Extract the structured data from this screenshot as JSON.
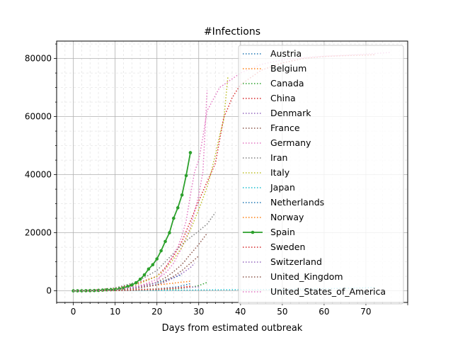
{
  "chart_data": {
    "type": "line",
    "title": "#Infections",
    "xlabel": "Days from estimated outbreak",
    "ylabel": "",
    "xlim": [
      -4,
      80
    ],
    "ylim": [
      -4000,
      86000
    ],
    "xticks": [
      0,
      10,
      20,
      30,
      40,
      50,
      60,
      70
    ],
    "yticks": [
      0,
      20000,
      40000,
      60000,
      80000
    ],
    "grid": "major and minor",
    "legend": "top-right",
    "series": [
      {
        "name": "Austria",
        "color": "#1f77b4",
        "style": "dotted",
        "x": [
          0,
          5,
          10,
          15,
          20,
          22,
          24,
          26
        ],
        "y": [
          0,
          200,
          600,
          1300,
          2800,
          3600,
          4500,
          5600
        ]
      },
      {
        "name": "Belgium",
        "color": "#ff7f0e",
        "style": "dotted",
        "x": [
          0,
          5,
          10,
          15,
          20,
          23,
          26,
          28
        ],
        "y": [
          0,
          150,
          500,
          1100,
          2000,
          2500,
          3000,
          3300
        ]
      },
      {
        "name": "Canada",
        "color": "#2ca02c",
        "style": "dotted",
        "x": [
          0,
          10,
          20,
          25,
          28,
          30,
          32
        ],
        "y": [
          0,
          80,
          300,
          700,
          1200,
          1800,
          2900
        ]
      },
      {
        "name": "China",
        "color": "#d62728",
        "style": "dotted",
        "x": [
          0,
          5,
          10,
          15,
          20,
          22,
          24,
          26,
          28,
          30,
          32,
          34,
          35,
          36,
          37,
          38,
          40,
          45,
          50,
          55,
          60,
          65,
          70,
          72
        ],
        "y": [
          0,
          300,
          1000,
          2500,
          5000,
          8000,
          12000,
          17000,
          24000,
          31000,
          37500,
          44000,
          52000,
          59800,
          63000,
          66500,
          71000,
          76000,
          78500,
          80000,
          80700,
          81000,
          81200,
          81300
        ]
      },
      {
        "name": "Denmark",
        "color": "#9467bd",
        "style": "dotted",
        "x": [
          0,
          10,
          20,
          25,
          30
        ],
        "y": [
          0,
          100,
          500,
          900,
          1400
        ]
      },
      {
        "name": "France",
        "color": "#8c564b",
        "style": "dotted",
        "x": [
          0,
          5,
          10,
          15,
          20,
          22,
          24,
          26,
          28,
          30,
          32
        ],
        "y": [
          0,
          150,
          500,
          1200,
          3000,
          4500,
          6600,
          9100,
          12600,
          16000,
          19800
        ]
      },
      {
        "name": "Germany",
        "color": "#e377c2",
        "style": "dotted",
        "x": [
          0,
          5,
          10,
          15,
          20,
          22,
          24,
          26,
          28,
          30,
          31,
          32
        ],
        "y": [
          0,
          150,
          500,
          1200,
          4000,
          6000,
          9500,
          15000,
          22000,
          33000,
          41000,
          69000
        ]
      },
      {
        "name": "Iran",
        "color": "#7f7f7f",
        "style": "dotted",
        "x": [
          0,
          5,
          10,
          15,
          20,
          22,
          24,
          26,
          28,
          30,
          32,
          34
        ],
        "y": [
          0,
          200,
          1000,
          3000,
          7000,
          10000,
          13000,
          16000,
          18400,
          20600,
          23000,
          27000
        ]
      },
      {
        "name": "Italy",
        "color": "#bcbd22",
        "style": "dotted",
        "x": [
          0,
          5,
          10,
          15,
          20,
          22,
          24,
          26,
          28,
          30,
          32,
          33,
          34,
          35,
          36,
          37
        ],
        "y": [
          0,
          200,
          700,
          2000,
          5000,
          7500,
          11000,
          15000,
          21000,
          28000,
          35700,
          41000,
          47000,
          53500,
          59100,
          74000
        ]
      },
      {
        "name": "Japan",
        "color": "#17becf",
        "style": "dotted",
        "x": [
          0,
          10,
          20,
          30,
          40,
          50,
          60,
          70,
          72
        ],
        "y": [
          0,
          100,
          200,
          300,
          400,
          500,
          700,
          1000,
          1100
        ]
      },
      {
        "name": "Netherlands",
        "color": "#1f77b4",
        "style": "dotted",
        "x": [
          0,
          10,
          20,
          25,
          28
        ],
        "y": [
          0,
          200,
          700,
          1400,
          2500
        ]
      },
      {
        "name": "Norway",
        "color": "#ff7f0e",
        "style": "dotted",
        "x": [
          0,
          10,
          20,
          25,
          28
        ],
        "y": [
          0,
          150,
          600,
          1000,
          1500
        ]
      },
      {
        "name": "Spain",
        "color": "#2ca02c",
        "style": "solid-marker",
        "x": [
          0,
          1,
          2,
          3,
          4,
          5,
          6,
          7,
          8,
          9,
          10,
          11,
          12,
          13,
          14,
          15,
          16,
          17,
          18,
          19,
          20,
          21,
          22,
          23,
          24,
          25,
          26,
          27,
          28
        ],
        "y": [
          0,
          10,
          20,
          40,
          70,
          100,
          150,
          250,
          350,
          400,
          450,
          700,
          1000,
          1500,
          2000,
          2800,
          4000,
          5500,
          7500,
          9000,
          11000,
          13800,
          17000,
          20000,
          25000,
          28600,
          33000,
          39700,
          47600
        ]
      },
      {
        "name": "Sweden",
        "color": "#d62728",
        "style": "dotted",
        "x": [
          0,
          10,
          20,
          25,
          28
        ],
        "y": [
          0,
          100,
          500,
          1000,
          1600
        ]
      },
      {
        "name": "Switzerland",
        "color": "#9467bd",
        "style": "dotted",
        "x": [
          0,
          10,
          20,
          22,
          24,
          26,
          28,
          29
        ],
        "y": [
          0,
          300,
          2200,
          3000,
          4500,
          6000,
          8000,
          9500
        ]
      },
      {
        "name": "United_Kingdom",
        "color": "#8c564b",
        "style": "dotted",
        "x": [
          0,
          5,
          10,
          15,
          20,
          22,
          24,
          26,
          28,
          30
        ],
        "y": [
          0,
          100,
          300,
          800,
          2000,
          3500,
          5000,
          7000,
          9500,
          12000
        ]
      },
      {
        "name": "United_States_of_America",
        "color": "#e377c2",
        "style": "dotted",
        "x": [
          0,
          10,
          20,
          25,
          26,
          27,
          28,
          29,
          30,
          31,
          32,
          35,
          40,
          45,
          50,
          55,
          60,
          65,
          70,
          75,
          76
        ],
        "y": [
          0,
          300,
          3000,
          15000,
          19000,
          24000,
          33000,
          41000,
          45000,
          53000,
          62000,
          70000,
          75000,
          78000,
          79500,
          80300,
          80800,
          81100,
          81500,
          82000,
          82100
        ]
      }
    ]
  }
}
